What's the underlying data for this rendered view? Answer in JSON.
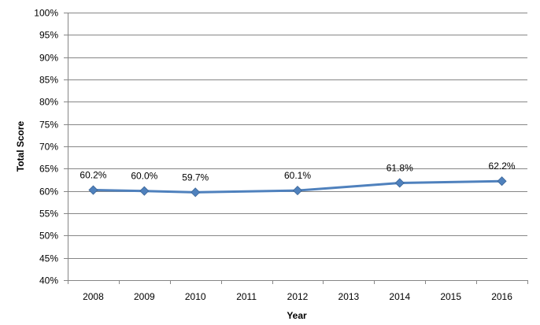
{
  "chart_data": {
    "type": "line",
    "categories": [
      "2008",
      "2009",
      "2010",
      "2011",
      "2012",
      "2013",
      "2014",
      "2015",
      "2016"
    ],
    "series": [
      {
        "values": [
          60.2,
          60.0,
          59.7,
          null,
          60.1,
          null,
          61.8,
          null,
          62.2
        ],
        "data_labels": [
          "60.2%",
          "60.0%",
          "59.7%",
          "",
          "60.1%",
          "",
          "61.8%",
          "",
          "62.2%"
        ],
        "color": "#4f81bd"
      }
    ],
    "xlabel": "Year",
    "ylabel": "Total Score",
    "ylim": [
      40,
      100
    ],
    "ytick_step": 5,
    "ytick_labels": [
      "40%",
      "45%",
      "50%",
      "55%",
      "60%",
      "65%",
      "70%",
      "75%",
      "80%",
      "85%",
      "90%",
      "95%",
      "100%"
    ],
    "grid": true,
    "gridline_color": "#868686",
    "line_color": "#4f81bd",
    "marker": "diamond"
  }
}
